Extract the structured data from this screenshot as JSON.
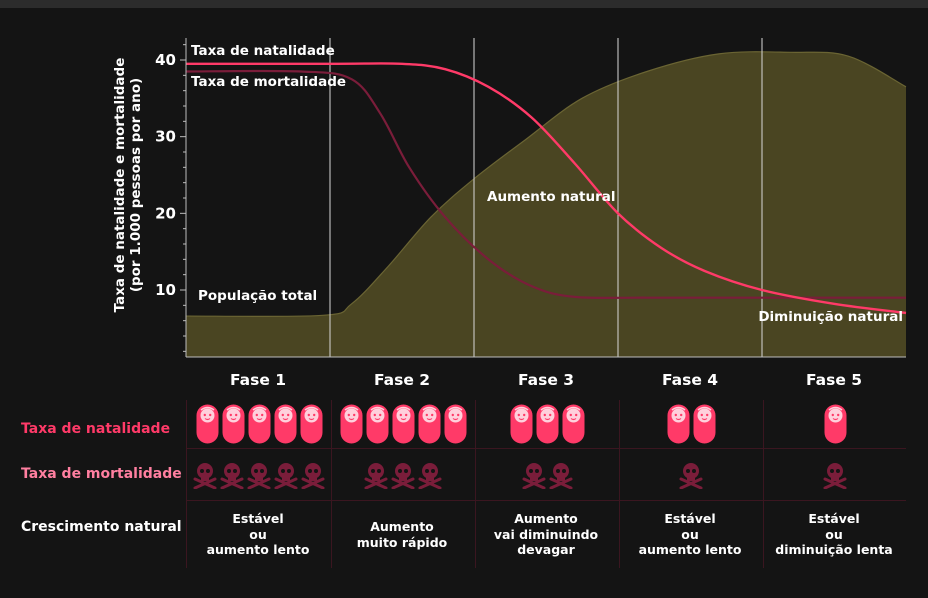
{
  "chart_data": {
    "type": "line",
    "ylabel": "Taxa de natalidade e mortalidade\n(por 1.000 pessoas por ano)",
    "ylim": [
      0,
      42
    ],
    "yticks": [
      10,
      20,
      30,
      40
    ],
    "phases": [
      "Fase 1",
      "Fase 2",
      "Fase 3",
      "Fase 4",
      "Fase 5"
    ],
    "x_range": [
      0,
      5
    ],
    "series": [
      {
        "name": "Taxa de natalidade",
        "color": "#ff3a68",
        "points": [
          [
            0,
            39.5
          ],
          [
            1,
            39.5
          ],
          [
            1.5,
            39.5
          ],
          [
            1.8,
            38.8
          ],
          [
            2.1,
            36.5
          ],
          [
            2.4,
            32.5
          ],
          [
            2.7,
            26.5
          ],
          [
            3.0,
            20.0
          ],
          [
            3.3,
            15.5
          ],
          [
            3.6,
            12.5
          ],
          [
            4.0,
            10.0
          ],
          [
            4.5,
            8.2
          ],
          [
            5,
            7.0
          ]
        ]
      },
      {
        "name": "Taxa de mortalidade",
        "color": "#7a1d3a",
        "points": [
          [
            0,
            38.5
          ],
          [
            0.8,
            38.5
          ],
          [
            1.15,
            37.5
          ],
          [
            1.35,
            33.0
          ],
          [
            1.55,
            26.0
          ],
          [
            1.8,
            19.5
          ],
          [
            2.1,
            14.0
          ],
          [
            2.4,
            10.5
          ],
          [
            2.7,
            9.1
          ],
          [
            3.2,
            9.0
          ],
          [
            4,
            9.0
          ],
          [
            5,
            9.0
          ]
        ]
      },
      {
        "name": "População total",
        "color": "#5a5530",
        "points": [
          [
            0,
            6.6
          ],
          [
            0.95,
            6.7
          ],
          [
            1.15,
            8.2
          ],
          [
            1.4,
            13.0
          ],
          [
            1.7,
            19.5
          ],
          [
            2.0,
            24.5
          ],
          [
            2.35,
            29.5
          ],
          [
            2.75,
            35.0
          ],
          [
            3.2,
            38.5
          ],
          [
            3.7,
            40.8
          ],
          [
            4.2,
            41.0
          ],
          [
            4.6,
            40.5
          ],
          [
            5,
            36.5
          ]
        ]
      }
    ],
    "labels": {
      "birth_rate": "Taxa de natalidade",
      "death_rate": "Taxa de mortalidade",
      "population": "População total",
      "natural_increase": "Aumento natural",
      "natural_decrease": "Diminuição natural"
    }
  },
  "table": {
    "row_labels": {
      "births": "Taxa de natalidade",
      "deaths": "Taxa de mortalidade",
      "growth": "Crescimento natural"
    },
    "birth_icons": [
      5,
      5,
      3,
      2,
      1
    ],
    "death_icons": [
      5,
      3,
      2,
      1,
      1
    ],
    "growth": [
      [
        "Estável",
        "ou",
        "aumento lento"
      ],
      [
        "Aumento",
        "muito rápido"
      ],
      [
        "Aumento",
        "vai diminuindo",
        "devagar"
      ],
      [
        "Estável",
        "ou",
        "aumento lento"
      ],
      [
        "Estável",
        "ou",
        "diminuição lenta"
      ]
    ],
    "icon_names": {
      "birth": "baby-icon",
      "death": "skull-crossbones-icon"
    }
  },
  "colors": {
    "background": "#141414",
    "birth": "#ff3a68",
    "death": "#7a1d3a",
    "population_fill": "#4a4522",
    "birth_label": "#ff3a68",
    "death_label": "#ff7fa0",
    "grid": "#3b1620"
  }
}
